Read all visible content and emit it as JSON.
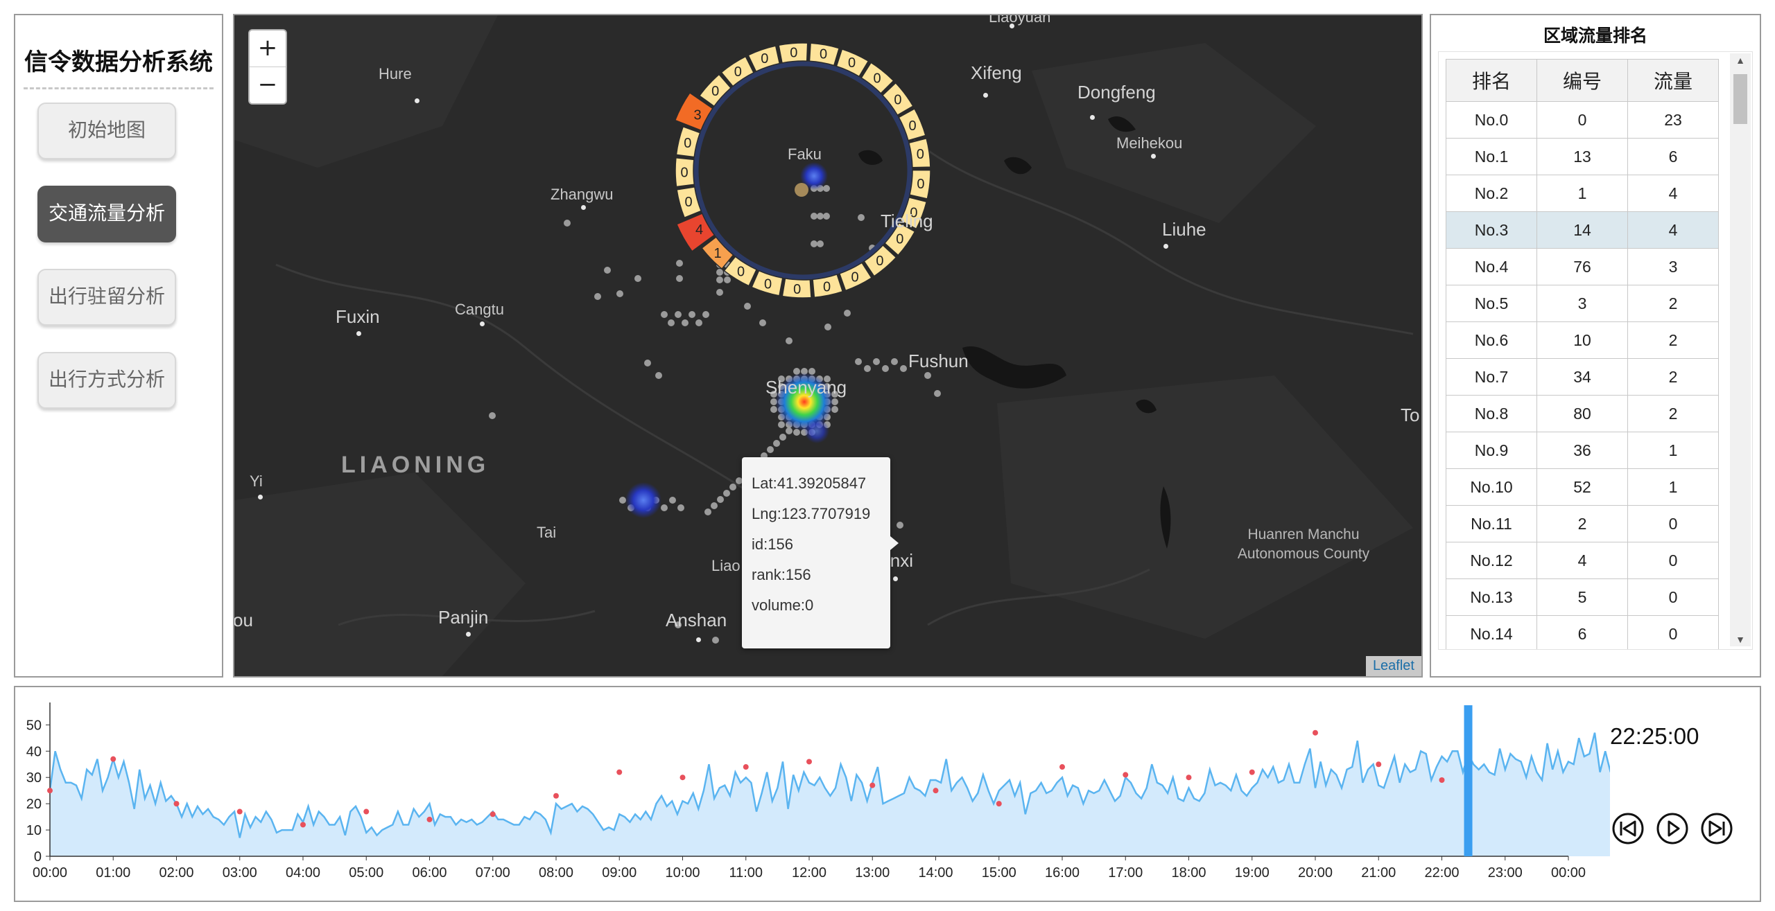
{
  "app": {
    "title": "信令数据分析系统",
    "nav": [
      {
        "label": "初始地图",
        "active": false
      },
      {
        "label": "交通流量分析",
        "active": true
      },
      {
        "label": "出行驻留分析",
        "active": false
      },
      {
        "label": "出行方式分析",
        "active": false
      }
    ]
  },
  "map": {
    "zoom_in": "+",
    "zoom_out": "−",
    "attribution": "Leaflet",
    "places": {
      "liaoyuan": "Liaoyuan",
      "hure": "Hure",
      "xifeng": "Xifeng",
      "dongfeng": "Dongfeng",
      "meihekou": "Meihekou",
      "faku": "Faku",
      "zhangwu": "Zhangwu",
      "tieling": "Tieling",
      "liuhe": "Liuhe",
      "fuxin": "Fuxin",
      "cangtu": "Cangtu",
      "fushun": "Fushun",
      "shenyang": "Shenyang",
      "liaoning": "LIAONING",
      "yi": "Yi",
      "tai": "Tai",
      "liao": "Liao",
      "benxi": "Benxi",
      "panjin": "Panjin",
      "anshan": "Anshan",
      "ou": "ou",
      "to": "To",
      "huanren": "Huanren Manchu Autonomous County"
    },
    "ring": {
      "values": [
        3,
        0,
        0,
        0,
        0,
        0,
        0,
        0,
        0,
        0,
        0,
        0,
        0,
        0,
        0,
        0,
        0,
        0,
        0,
        0,
        1,
        4,
        0,
        0,
        0
      ],
      "colors": {
        "low": "#fde39a",
        "mid": "#f7a04e",
        "high": "#e8452f",
        "peak": "#f26b25"
      }
    },
    "tooltip": {
      "lat": "Lat:41.39205847",
      "lng": "Lng:123.7707919",
      "id": "id:156",
      "rank": "rank:156",
      "volume": "volume:0"
    }
  },
  "ranking": {
    "title": "区域流量排名",
    "headers": [
      "排名",
      "编号",
      "流量"
    ],
    "rows": [
      [
        "No.0",
        "0",
        "23"
      ],
      [
        "No.1",
        "13",
        "6"
      ],
      [
        "No.2",
        "1",
        "4"
      ],
      [
        "No.3",
        "14",
        "4"
      ],
      [
        "No.4",
        "76",
        "3"
      ],
      [
        "No.5",
        "3",
        "2"
      ],
      [
        "No.6",
        "10",
        "2"
      ],
      [
        "No.7",
        "34",
        "2"
      ],
      [
        "No.8",
        "80",
        "2"
      ],
      [
        "No.9",
        "36",
        "1"
      ],
      [
        "No.10",
        "52",
        "1"
      ],
      [
        "No.11",
        "2",
        "0"
      ],
      [
        "No.12",
        "4",
        "0"
      ],
      [
        "No.13",
        "5",
        "0"
      ],
      [
        "No.14",
        "6",
        "0"
      ]
    ],
    "highlight_rank": "No.3"
  },
  "timeline": {
    "clock": "22:25:00",
    "current_time": "22:25",
    "controls": {
      "prev": "previous-icon",
      "play": "play-icon",
      "next": "next-icon"
    }
  },
  "chart_data": {
    "type": "area",
    "x_ticks": [
      "00:00",
      "01:00",
      "02:00",
      "03:00",
      "04:00",
      "05:00",
      "06:00",
      "07:00",
      "08:00",
      "09:00",
      "10:00",
      "11:00",
      "12:00",
      "13:00",
      "14:00",
      "15:00",
      "16:00",
      "17:00",
      "18:00",
      "19:00",
      "20:00",
      "21:00",
      "22:00",
      "23:00",
      "00:00"
    ],
    "y_ticks": [
      0,
      10,
      20,
      30,
      40,
      50
    ],
    "ylim": [
      0,
      58
    ],
    "xlim_hours": [
      0,
      24
    ],
    "interval_minutes": 5,
    "series": [
      {
        "values": [
          25,
          40,
          33,
          28,
          28,
          27,
          22,
          33,
          31,
          37,
          25,
          30,
          37,
          30,
          36,
          28,
          18,
          33,
          22,
          27,
          20,
          28,
          21,
          23,
          20,
          15,
          20,
          15,
          19,
          16,
          18,
          15,
          14,
          12,
          15,
          17,
          7,
          16,
          11,
          15,
          13,
          17,
          14,
          9,
          10,
          10,
          10,
          16,
          13,
          19,
          12,
          17,
          15,
          12,
          12,
          15,
          8,
          17,
          19,
          15,
          9,
          11,
          8,
          10,
          11,
          12,
          17,
          12,
          12,
          18,
          15,
          17,
          20,
          12,
          16,
          15,
          15,
          12,
          14,
          13,
          14,
          12,
          13,
          15,
          17,
          14,
          14,
          13,
          12,
          12,
          15,
          14,
          17,
          16,
          14,
          9,
          20,
          18,
          19,
          20,
          17,
          19,
          18,
          16,
          13,
          10,
          11,
          10,
          16,
          15,
          13,
          16,
          14,
          17,
          14,
          20,
          23,
          19,
          21,
          16,
          21,
          20,
          24,
          18,
          25,
          35,
          22,
          26,
          27,
          23,
          32,
          28,
          30,
          28,
          17,
          24,
          32,
          21,
          26,
          36,
          18,
          31,
          25,
          32,
          28,
          27,
          30,
          26,
          23,
          26,
          35,
          30,
          21,
          31,
          28,
          21,
          28,
          34,
          20,
          21,
          22,
          23,
          24,
          30,
          26,
          25,
          23,
          29,
          29,
          28,
          37,
          25,
          28,
          30,
          26,
          21,
          24,
          31,
          25,
          20,
          25,
          27,
          29,
          23,
          28,
          16,
          24,
          25,
          28,
          24,
          25,
          28,
          30,
          23,
          27,
          26,
          20,
          25,
          24,
          25,
          29,
          25,
          21,
          23,
          30,
          28,
          24,
          22,
          26,
          35,
          28,
          27,
          24,
          30,
          22,
          21,
          26,
          22,
          21,
          24,
          33,
          27,
          28,
          27,
          25,
          31,
          25,
          23,
          26,
          28,
          33,
          30,
          34,
          28,
          29,
          35,
          28,
          28,
          35,
          41,
          26,
          36,
          27,
          33,
          31,
          26,
          33,
          34,
          44,
          28,
          33,
          35,
          27,
          26,
          32,
          38,
          28,
          35,
          32,
          33,
          40,
          39,
          29,
          34,
          38,
          36,
          40,
          40,
          32,
          39,
          35,
          33,
          35,
          32,
          31,
          41,
          33,
          39,
          37,
          36,
          30,
          38,
          32,
          29,
          43,
          33,
          40,
          32,
          36,
          35,
          45,
          38,
          39,
          47,
          32,
          40,
          32,
          46,
          35,
          53,
          38,
          40,
          47,
          31,
          39,
          39,
          35,
          32,
          42,
          34,
          36,
          35,
          37,
          29,
          40,
          29,
          40,
          34,
          35,
          42,
          30,
          34,
          32,
          33,
          29,
          40,
          35,
          33,
          44
        ]
      }
    ],
    "markers": [
      {
        "time": "00:00",
        "value": 25
      },
      {
        "time": "01:00",
        "value": 37
      },
      {
        "time": "02:00",
        "value": 20
      },
      {
        "time": "03:00",
        "value": 17
      },
      {
        "time": "04:00",
        "value": 12
      },
      {
        "time": "05:00",
        "value": 17
      },
      {
        "time": "06:00",
        "value": 14
      },
      {
        "time": "07:00",
        "value": 16
      },
      {
        "time": "08:00",
        "value": 23
      },
      {
        "time": "09:00",
        "value": 32
      },
      {
        "time": "10:00",
        "value": 30
      },
      {
        "time": "11:00",
        "value": 34
      },
      {
        "time": "12:00",
        "value": 36
      },
      {
        "time": "13:00",
        "value": 27
      },
      {
        "time": "14:00",
        "value": 25
      },
      {
        "time": "15:00",
        "value": 20
      },
      {
        "time": "16:00",
        "value": 34
      },
      {
        "time": "17:00",
        "value": 31
      },
      {
        "time": "18:00",
        "value": 30
      },
      {
        "time": "19:00",
        "value": 32
      },
      {
        "time": "20:00",
        "value": 47
      },
      {
        "time": "21:00",
        "value": 35
      },
      {
        "time": "22:00",
        "value": 29
      }
    ]
  }
}
